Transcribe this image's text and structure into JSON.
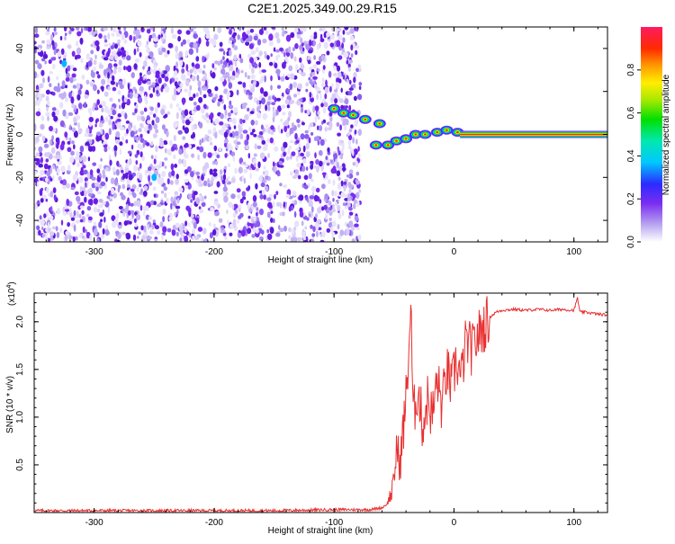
{
  "title": "C2E1.2025.349.00.29.R15",
  "chart_data": [
    {
      "type": "heatmap",
      "xlabel": "Height of straight line (km)",
      "ylabel": "Frequency (Hz)",
      "xlim": [
        -350,
        128
      ],
      "ylim": [
        -50,
        50
      ],
      "xticks": [
        -300,
        -200,
        -100,
        0,
        100
      ],
      "yticks": [
        -40,
        -20,
        0,
        20,
        40
      ],
      "noise_region_x": [
        -350,
        -78
      ],
      "ridge_points": [
        {
          "x": -100,
          "y": 12
        },
        {
          "x": -92,
          "y": 10
        },
        {
          "x": -84,
          "y": 9
        },
        {
          "x": -74,
          "y": 7
        },
        {
          "x": -62,
          "y": 5
        },
        {
          "x": -65,
          "y": -5
        },
        {
          "x": -55,
          "y": -5
        },
        {
          "x": -48,
          "y": -3
        },
        {
          "x": -40,
          "y": -2
        },
        {
          "x": -32,
          "y": 0
        },
        {
          "x": -24,
          "y": 0
        },
        {
          "x": -14,
          "y": 1
        },
        {
          "x": -6,
          "y": 2
        },
        {
          "x": 3,
          "y": 1
        }
      ],
      "ridge_line": {
        "x_start": 5,
        "x_end": 128,
        "y": 0
      },
      "colorbar": {
        "label": "Normalized spectral amplitude",
        "range": [
          0,
          1
        ],
        "ticks": [
          "0.0",
          "0.2",
          "0.4",
          "0.6",
          "0.8"
        ]
      }
    },
    {
      "type": "line",
      "xlabel": "Height of straight line (km)",
      "ylabel": "SNR (10 * v/v)",
      "scale_label": "(x10",
      "scale_exp": "4",
      "scale_close": ")",
      "xlim": [
        -350,
        128
      ],
      "ylim": [
        0,
        2.3
      ],
      "xticks": [
        -300,
        -200,
        -100,
        0,
        100
      ],
      "yticks": [
        "0.5",
        "1.0",
        "1.5",
        "2.0"
      ],
      "color": "#e83030",
      "x": [
        -350,
        -300,
        -250,
        -200,
        -150,
        -100,
        -70,
        -60,
        -55,
        -50,
        -48,
        -45,
        -42,
        -40,
        -38,
        -36,
        -34,
        -30,
        -26,
        -22,
        -18,
        -14,
        -10,
        -6,
        -2,
        2,
        6,
        10,
        15,
        20,
        25,
        30,
        35,
        40,
        50,
        60,
        70,
        80,
        90,
        100,
        103,
        105,
        110,
        120,
        128
      ],
      "values": [
        0.02,
        0.02,
        0.02,
        0.02,
        0.02,
        0.03,
        0.03,
        0.05,
        0.1,
        0.3,
        0.7,
        0.5,
        0.9,
        1.2,
        1.6,
        2.18,
        1.0,
        1.3,
        0.9,
        1.2,
        1.0,
        1.4,
        1.1,
        1.5,
        1.3,
        1.6,
        1.4,
        1.8,
        1.7,
        1.85,
        1.95,
        2.05,
        2.1,
        2.12,
        2.13,
        2.12,
        2.13,
        2.12,
        2.13,
        2.12,
        2.25,
        2.1,
        2.1,
        2.08,
        2.07
      ]
    }
  ]
}
